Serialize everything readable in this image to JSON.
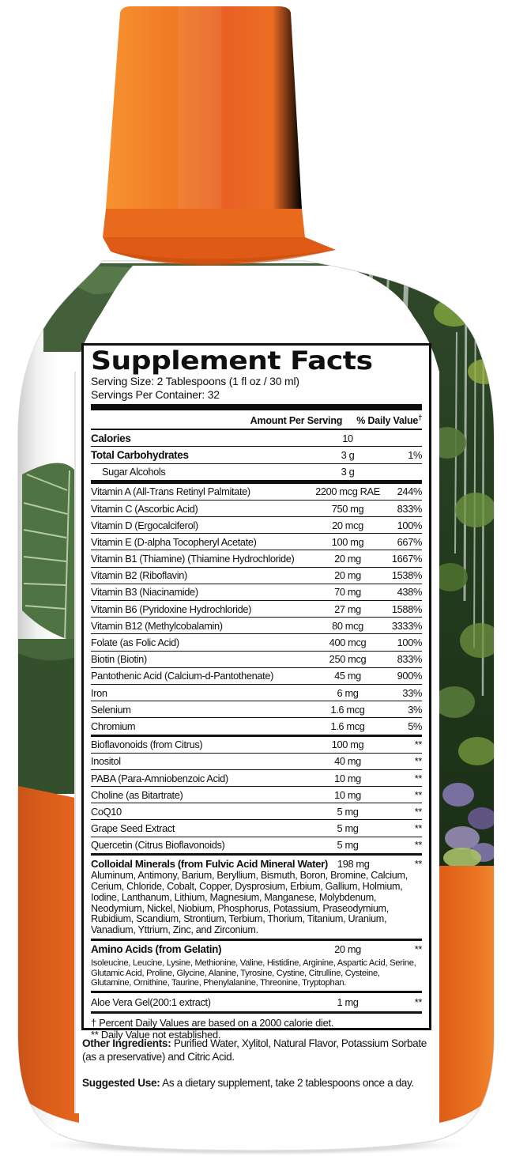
{
  "facts": {
    "title": "Supplement Facts",
    "serving_size": "Serving Size: 2 Tablespoons (1 fl oz / 30 ml)",
    "servings_per_container": "Servings Per Container: 32",
    "col_amount": "Amount Per Serving",
    "col_dv": "% Daily Value",
    "col_dv_sup": "†",
    "top_rows": [
      {
        "name": "Calories",
        "amount": "10",
        "dv": "",
        "b": true
      },
      {
        "name": "Total Carbohydrates",
        "amount": "3 g",
        "dv": "1%",
        "b": true
      },
      {
        "name": "Sugar Alcohols",
        "amount": "3 g",
        "dv": "",
        "ind": true
      }
    ],
    "vitamin_rows": [
      {
        "name": "Vitamin A (All-Trans Retinyl Palmitate)",
        "amount": "2200 mcg RAE",
        "dv": "244%"
      },
      {
        "name": "Vitamin C (Ascorbic Acid)",
        "amount": "750 mg",
        "dv": "833%"
      },
      {
        "name": "Vitamin D (Ergocalciferol)",
        "amount": "20 mcg",
        "dv": "100%"
      },
      {
        "name": "Vitamin E (D-alpha Tocopheryl Acetate)",
        "amount": "100 mg",
        "dv": "667%"
      },
      {
        "name": "Vitamin B1 (Thiamine) (Thiamine Hydrochloride)",
        "amount": "20 mg",
        "dv": "1667%"
      },
      {
        "name": "Vitamin B2 (Riboflavin)",
        "amount": "20 mg",
        "dv": "1538%"
      },
      {
        "name": "Vitamin B3 (Niacinamide)",
        "amount": "70 mg",
        "dv": "438%"
      },
      {
        "name": "Vitamin B6 (Pyridoxine Hydrochloride)",
        "amount": "27 mg",
        "dv": "1588%"
      },
      {
        "name": "Vitamin B12 (Methylcobalamin)",
        "amount": "80 mcg",
        "dv": "3333%"
      },
      {
        "name": "Folate (as Folic Acid)",
        "amount": "400 mcg",
        "dv": "100%"
      },
      {
        "name": "Biotin (Biotin)",
        "amount": "250 mcg",
        "dv": "833%"
      },
      {
        "name": "Pantothenic Acid (Calcium-d-Pantothenate)",
        "amount": "45 mg",
        "dv": "900%"
      },
      {
        "name": "Iron",
        "amount": "6 mg",
        "dv": "33%"
      },
      {
        "name": "Selenium",
        "amount": "1.6 mcg",
        "dv": "3%"
      },
      {
        "name": "Chromium",
        "amount": "1.6 mcg",
        "dv": "5%"
      }
    ],
    "misc_rows": [
      {
        "name": "Bioflavonoids (from Citrus)",
        "amount": "100 mg",
        "dv": "**"
      },
      {
        "name": "Inositol",
        "amount": "40 mg",
        "dv": "**"
      },
      {
        "name": "PABA (Para-Amniobenzoic Acid)",
        "amount": "10 mg",
        "dv": "**"
      },
      {
        "name": "Choline (as Bitartrate)",
        "amount": "10 mg",
        "dv": "**"
      },
      {
        "name": "CoQ10",
        "amount": "5 mg",
        "dv": "**"
      },
      {
        "name": "Grape Seed Extract",
        "amount": "5 mg",
        "dv": "**"
      },
      {
        "name": "Quercetin (Citrus Bioflavonoids)",
        "amount": "5 mg",
        "dv": "**"
      }
    ],
    "colloidal": {
      "name": "Colloidal Minerals (from Fulvic Acid Mineral Water)",
      "amount": "198 mg",
      "dv": "**",
      "list": "Aluminum, Antimony, Barium, Beryllium, Bismuth, Boron, Bromine, Calcium, Cerium, Chloride, Cobalt, Copper, Dysprosium, Erbium, Gallium, Holmium, Iodine, Lanthanum, Lithium, Magnesium, Manganese, Molybdenum, Neodymium, Nickel, Niobium, Phosphorus, Potassium, Praseodymium, Rubidium, Scandium, Strontium, Terbium, Thorium, Titanium, Uranium, Vanadium, Yttrium, Zinc, and Zirconium."
    },
    "amino": {
      "name": "Amino Acids (from Gelatin)",
      "amount": "20 mg",
      "dv": "**",
      "list": "Isoleucine, Leucine, Lysine, Methionine, Valine, Histidine, Arginine, Aspartic Acid, Serine, Glutamic Acid, Proline, Glycine, Alanine, Tyrosine, Cystine, Citrulline, Cysteine, Glutamine, Ornithine, Taurine, Phenylalanine, Threonine, Tryptophan."
    },
    "aloe_row": {
      "name": "Aloe Vera Gel(200:1 extract)",
      "amount": "1 mg",
      "dv": "**"
    },
    "footnote1": "† Percent Daily Values are based on a 2000 calorie diet.",
    "footnote2": "** Daily Value not established."
  },
  "paragraphs": {
    "other_label": "Other Ingredients:",
    "other_text": " Purified Water, Xylitol, Natural Flavor, Potassium Sorbate (as a preservative) and Citric Acid.",
    "use_label": "Suggested Use:",
    "use_text": " As a dietary supplement, take 2 tablespoons once a day."
  },
  "colors": {
    "cap_orange": "#ef7223",
    "cap_ring_orange": "#df5a16",
    "label_orange_left": "#dd5e1a",
    "label_orange_right": "#e8661c",
    "palm_green": "#4f7342",
    "foliage_dark_green": "#334f2c",
    "jungle_green": "#23391f",
    "moss_green": "#7da53e",
    "flower_purple": "#8377ad",
    "text_black": "#101010"
  }
}
